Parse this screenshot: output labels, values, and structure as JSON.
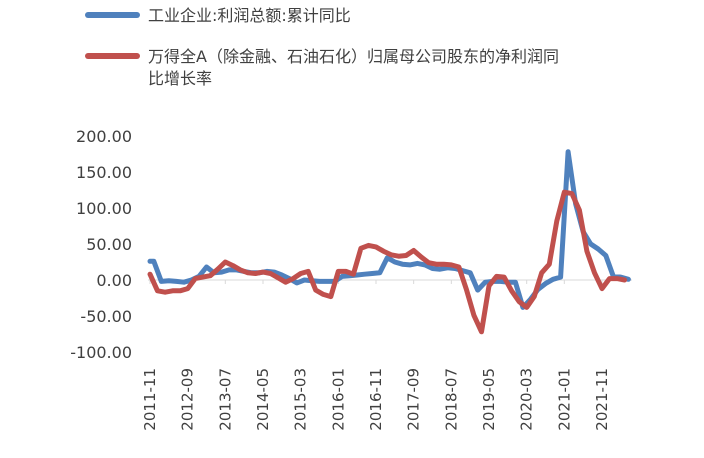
{
  "chart_data": {
    "type": "line",
    "title": "",
    "xlabel": "",
    "ylabel": "",
    "ylim": [
      -100,
      200
    ],
    "yticks": [
      "200.00",
      "150.00",
      "100.00",
      "50.00",
      "0.00",
      "-50.00",
      "-100.00"
    ],
    "xticks": [
      "2011-11",
      "2012-09",
      "2013-07",
      "2014-05",
      "2015-03",
      "2016-01",
      "2016-11",
      "2017-09",
      "2018-07",
      "2019-05",
      "2020-03",
      "2021-01",
      "2021-11"
    ],
    "grid": false,
    "legend_position": "top-left",
    "series": [
      {
        "name": "工业企业:利润总额:累计同比",
        "color": "#4F81BD",
        "points": [
          [
            "2011-11",
            26
          ],
          [
            "2011-12",
            26
          ],
          [
            "2012-02",
            -2
          ],
          [
            "2012-04",
            -1
          ],
          [
            "2012-06",
            -2
          ],
          [
            "2012-08",
            -3
          ],
          [
            "2012-10",
            0
          ],
          [
            "2012-12",
            5
          ],
          [
            "2013-02",
            18
          ],
          [
            "2013-04",
            10
          ],
          [
            "2013-06",
            11
          ],
          [
            "2013-08",
            14
          ],
          [
            "2013-10",
            14
          ],
          [
            "2013-12",
            12
          ],
          [
            "2014-02",
            10
          ],
          [
            "2014-04",
            10
          ],
          [
            "2014-06",
            12
          ],
          [
            "2014-08",
            11
          ],
          [
            "2014-10",
            7
          ],
          [
            "2014-12",
            2
          ],
          [
            "2015-02",
            -4
          ],
          [
            "2015-04",
            0
          ],
          [
            "2015-06",
            -1
          ],
          [
            "2015-08",
            -2
          ],
          [
            "2015-10",
            -2
          ],
          [
            "2015-12",
            -2
          ],
          [
            "2016-02",
            5
          ],
          [
            "2016-04",
            6
          ],
          [
            "2016-06",
            7
          ],
          [
            "2016-08",
            8
          ],
          [
            "2016-10",
            9
          ],
          [
            "2016-12",
            10
          ],
          [
            "2017-02",
            31
          ],
          [
            "2017-04",
            25
          ],
          [
            "2017-06",
            22
          ],
          [
            "2017-08",
            21
          ],
          [
            "2017-10",
            23
          ],
          [
            "2017-12",
            21
          ],
          [
            "2018-02",
            16
          ],
          [
            "2018-04",
            15
          ],
          [
            "2018-06",
            17
          ],
          [
            "2018-08",
            16
          ],
          [
            "2018-10",
            13
          ],
          [
            "2018-12",
            10
          ],
          [
            "2019-02",
            -14
          ],
          [
            "2019-04",
            -3
          ],
          [
            "2019-06",
            -2
          ],
          [
            "2019-08",
            -2
          ],
          [
            "2019-10",
            -3
          ],
          [
            "2019-12",
            -3
          ],
          [
            "2020-02",
            -38
          ],
          [
            "2020-04",
            -27
          ],
          [
            "2020-06",
            -13
          ],
          [
            "2020-08",
            -5
          ],
          [
            "2020-10",
            1
          ],
          [
            "2020-12",
            4
          ],
          [
            "2021-02",
            178
          ],
          [
            "2021-04",
            106
          ],
          [
            "2021-06",
            67
          ],
          [
            "2021-08",
            50
          ],
          [
            "2021-10",
            43
          ],
          [
            "2021-12",
            34
          ],
          [
            "2022-02",
            5
          ],
          [
            "2022-04",
            4
          ],
          [
            "2022-06",
            1
          ]
        ]
      },
      {
        "name": "万得全A（除金融、石油石化）归属母公司股东的净利润同比增长率",
        "color": "#C0504D",
        "points": [
          [
            "2011-11",
            8
          ],
          [
            "2012-01",
            -15
          ],
          [
            "2012-03",
            -17
          ],
          [
            "2012-05",
            -15
          ],
          [
            "2012-07",
            -15
          ],
          [
            "2012-09",
            -12
          ],
          [
            "2012-11",
            2
          ],
          [
            "2013-01",
            4
          ],
          [
            "2013-03",
            6
          ],
          [
            "2013-05",
            15
          ],
          [
            "2013-07",
            25
          ],
          [
            "2013-09",
            20
          ],
          [
            "2013-11",
            14
          ],
          [
            "2014-01",
            10
          ],
          [
            "2014-03",
            9
          ],
          [
            "2014-05",
            11
          ],
          [
            "2014-07",
            9
          ],
          [
            "2014-09",
            3
          ],
          [
            "2014-11",
            -3
          ],
          [
            "2015-01",
            2
          ],
          [
            "2015-03",
            9
          ],
          [
            "2015-05",
            12
          ],
          [
            "2015-07",
            -14
          ],
          [
            "2015-09",
            -20
          ],
          [
            "2015-11",
            -23
          ],
          [
            "2016-01",
            12
          ],
          [
            "2016-03",
            12
          ],
          [
            "2016-05",
            8
          ],
          [
            "2016-07",
            44
          ],
          [
            "2016-09",
            48
          ],
          [
            "2016-11",
            46
          ],
          [
            "2017-01",
            40
          ],
          [
            "2017-03",
            35
          ],
          [
            "2017-05",
            33
          ],
          [
            "2017-07",
            34
          ],
          [
            "2017-09",
            41
          ],
          [
            "2017-11",
            32
          ],
          [
            "2018-01",
            24
          ],
          [
            "2018-03",
            22
          ],
          [
            "2018-05",
            22
          ],
          [
            "2018-07",
            21
          ],
          [
            "2018-09",
            18
          ],
          [
            "2018-11",
            -13
          ],
          [
            "2019-01",
            -49
          ],
          [
            "2019-03",
            -72
          ],
          [
            "2019-05",
            -8
          ],
          [
            "2019-07",
            5
          ],
          [
            "2019-09",
            4
          ],
          [
            "2019-11",
            -15
          ],
          [
            "2020-01",
            -30
          ],
          [
            "2020-03",
            -38
          ],
          [
            "2020-05",
            -23
          ],
          [
            "2020-07",
            10
          ],
          [
            "2020-09",
            22
          ],
          [
            "2020-11",
            82
          ],
          [
            "2021-01",
            122
          ],
          [
            "2021-03",
            120
          ],
          [
            "2021-05",
            97
          ],
          [
            "2021-07",
            40
          ],
          [
            "2021-09",
            10
          ],
          [
            "2021-11",
            -12
          ],
          [
            "2022-01",
            2
          ],
          [
            "2022-03",
            2
          ],
          [
            "2022-05",
            0
          ]
        ]
      }
    ]
  }
}
